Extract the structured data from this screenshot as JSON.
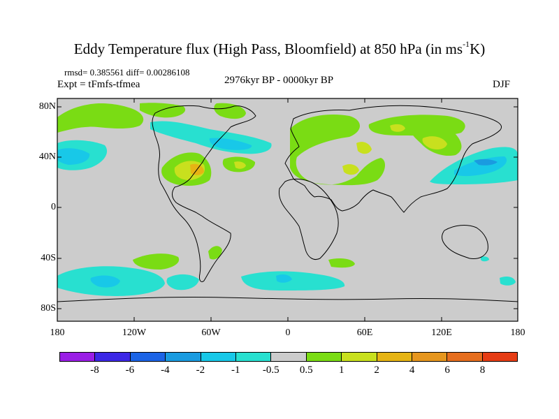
{
  "title": {
    "main": "Eddy Temperature flux (High Pass, Bloomfield) at 850 hPa (in ms",
    "sup": "-1",
    "end": "K)"
  },
  "stats": "rmsd= 0.385561 diff= 0.00286108",
  "experiment": "Expt = tFmfs-tfmea",
  "period": "2976kyr BP - 0000kyr BP",
  "season": "DJF",
  "lat_labels": [
    "80N",
    "40N",
    "0",
    "40S",
    "80S"
  ],
  "lon_labels": [
    "180",
    "120W",
    "60W",
    "0",
    "60E",
    "120E",
    "180"
  ],
  "colorbar": {
    "colors": [
      "#9a1ee6",
      "#3c28e6",
      "#1c64e6",
      "#1a9be0",
      "#18c8e8",
      "#28e0d0",
      "#cccccc",
      "#7adc14",
      "#c8e01e",
      "#e6b414",
      "#e6961e",
      "#e66e1e",
      "#e63c14"
    ],
    "labels": [
      "-8",
      "-6",
      "-4",
      "-2",
      "-1",
      "-0.5",
      "0.5",
      "1",
      "2",
      "4",
      "6",
      "8"
    ]
  },
  "colors": {
    "background": "#cccccc",
    "green": "#7adc14",
    "yellow": "#c8e01e",
    "orange": "#e6b414",
    "cyan": "#18c8e8",
    "blue": "#1a9be0"
  }
}
